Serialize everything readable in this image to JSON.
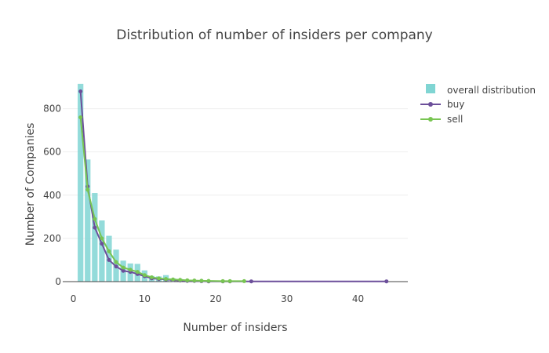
{
  "colors": {
    "bars": "#80d5d3",
    "buy": "#6c4f9a",
    "sell": "#78c552",
    "grid": "#eeeeee",
    "zero_line": "#444444",
    "text": "#444444"
  },
  "chart_data": {
    "type": "bar",
    "title": "Distribution of number of insiders per company",
    "xlabel": "Number of insiders",
    "ylabel": "Number of Companies",
    "xlim": [
      -1.5,
      47
    ],
    "ylim": [
      -40,
      940
    ],
    "x_ticks": [
      0,
      10,
      20,
      30,
      40
    ],
    "y_ticks": [
      0,
      200,
      400,
      600,
      800
    ],
    "grid": true,
    "legend_position": "top-right",
    "bar_series": {
      "name": "overall distribution",
      "x": [
        1,
        2,
        3,
        4,
        5,
        6,
        7,
        8,
        9,
        10,
        11,
        12,
        13,
        14,
        15,
        16,
        17,
        18,
        19
      ],
      "values": [
        915,
        565,
        410,
        283,
        212,
        148,
        97,
        84,
        82,
        52,
        26,
        24,
        30,
        15,
        12,
        8,
        6,
        5,
        3
      ]
    },
    "line_series": [
      {
        "name": "buy",
        "color": "#6c4f9a",
        "x": [
          1,
          2,
          3,
          4,
          5,
          6,
          7,
          8,
          9,
          10,
          11,
          12,
          13,
          14,
          15,
          16,
          17,
          18,
          19,
          21,
          22,
          25,
          44
        ],
        "values": [
          880,
          440,
          250,
          175,
          100,
          70,
          50,
          45,
          35,
          25,
          15,
          12,
          10,
          7,
          5,
          3,
          3,
          2,
          1,
          1,
          1,
          1,
          1
        ]
      },
      {
        "name": "sell",
        "color": "#78c552",
        "x": [
          1,
          2,
          3,
          4,
          5,
          6,
          7,
          8,
          9,
          10,
          11,
          12,
          13,
          14,
          15,
          16,
          17,
          18,
          19,
          21,
          22,
          24
        ],
        "values": [
          760,
          425,
          290,
          200,
          140,
          90,
          65,
          55,
          45,
          30,
          20,
          15,
          12,
          10,
          8,
          6,
          5,
          4,
          3,
          2,
          2,
          2
        ]
      }
    ]
  }
}
